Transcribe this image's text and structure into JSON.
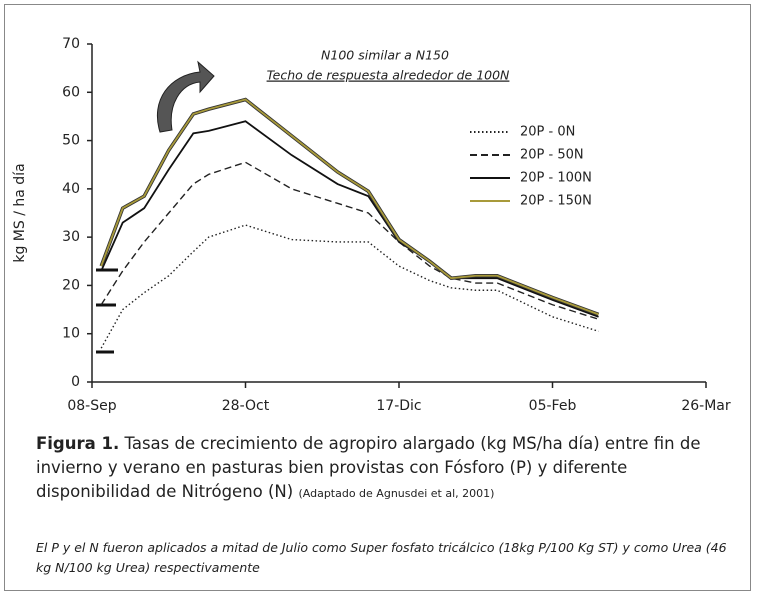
{
  "chart_data": {
    "type": "line",
    "xlim": [
      0,
      200
    ],
    "xticks": [
      {
        "value": 0,
        "label": "08-Sep"
      },
      {
        "value": 50,
        "label": "28-Oct"
      },
      {
        "value": 100,
        "label": "17-Dic"
      },
      {
        "value": 150,
        "label": "05-Feb"
      },
      {
        "value": 200,
        "label": "26-Mar"
      }
    ],
    "ylim": [
      0,
      70
    ],
    "yticks": [
      0,
      10,
      20,
      30,
      40,
      50,
      60,
      70
    ],
    "ylabel": "kg MS / ha día",
    "annotations": [
      "N100 similar a N150",
      "Techo de respuesta  alrededor de 100N"
    ],
    "legend": "upper right",
    "x": [
      3,
      10,
      17,
      25,
      33,
      38,
      50,
      65,
      80,
      90,
      100,
      110,
      117,
      125,
      132,
      150,
      165
    ],
    "series": [
      {
        "name": "20P - 0N",
        "color": "#222222",
        "dash": "dotted",
        "values": [
          7,
          15,
          18.5,
          22,
          27,
          30,
          32.5,
          29.5,
          29,
          29,
          24,
          21,
          19.5,
          19,
          19,
          13.5,
          10.5
        ]
      },
      {
        "name": "20P - 50N",
        "color": "#222222",
        "dash": "dashed",
        "values": [
          16,
          23,
          29,
          35,
          41,
          43,
          45.5,
          40,
          37,
          35,
          29,
          24,
          21.5,
          20.5,
          20.5,
          16,
          13
        ]
      },
      {
        "name": "20P - 100N",
        "color": "#111111",
        "dash": "solid",
        "values": [
          23,
          33,
          36,
          44,
          51.5,
          52,
          54,
          47,
          41,
          38.5,
          29,
          25,
          21.5,
          21.5,
          21.5,
          17,
          13.5
        ]
      },
      {
        "name": "20P - 150N",
        "color": "#a89a3a",
        "dash": "solid",
        "values": [
          24,
          36,
          38.5,
          48,
          55.5,
          56.5,
          58.5,
          51,
          43.5,
          39.5,
          29.5,
          25,
          21.5,
          22,
          22,
          17.5,
          14
        ]
      }
    ]
  },
  "caption": {
    "label": "Figura 1.",
    "text": "Tasas de crecimiento de agropiro alargado (kg MS/ha día) entre fin de invierno y verano en pasturas bien provistas con Fósforo (P) y diferente disponibilidad de Nitrógeno (N)",
    "source": "(Adaptado de Agnusdei et al, 2001)"
  },
  "note": "El P y el N fueron aplicados a mitad de Julio como Super fosfato tricálcico (18kg P/100 Kg ST) y como Urea (46 kg N/100 kg Urea) respectivamente"
}
